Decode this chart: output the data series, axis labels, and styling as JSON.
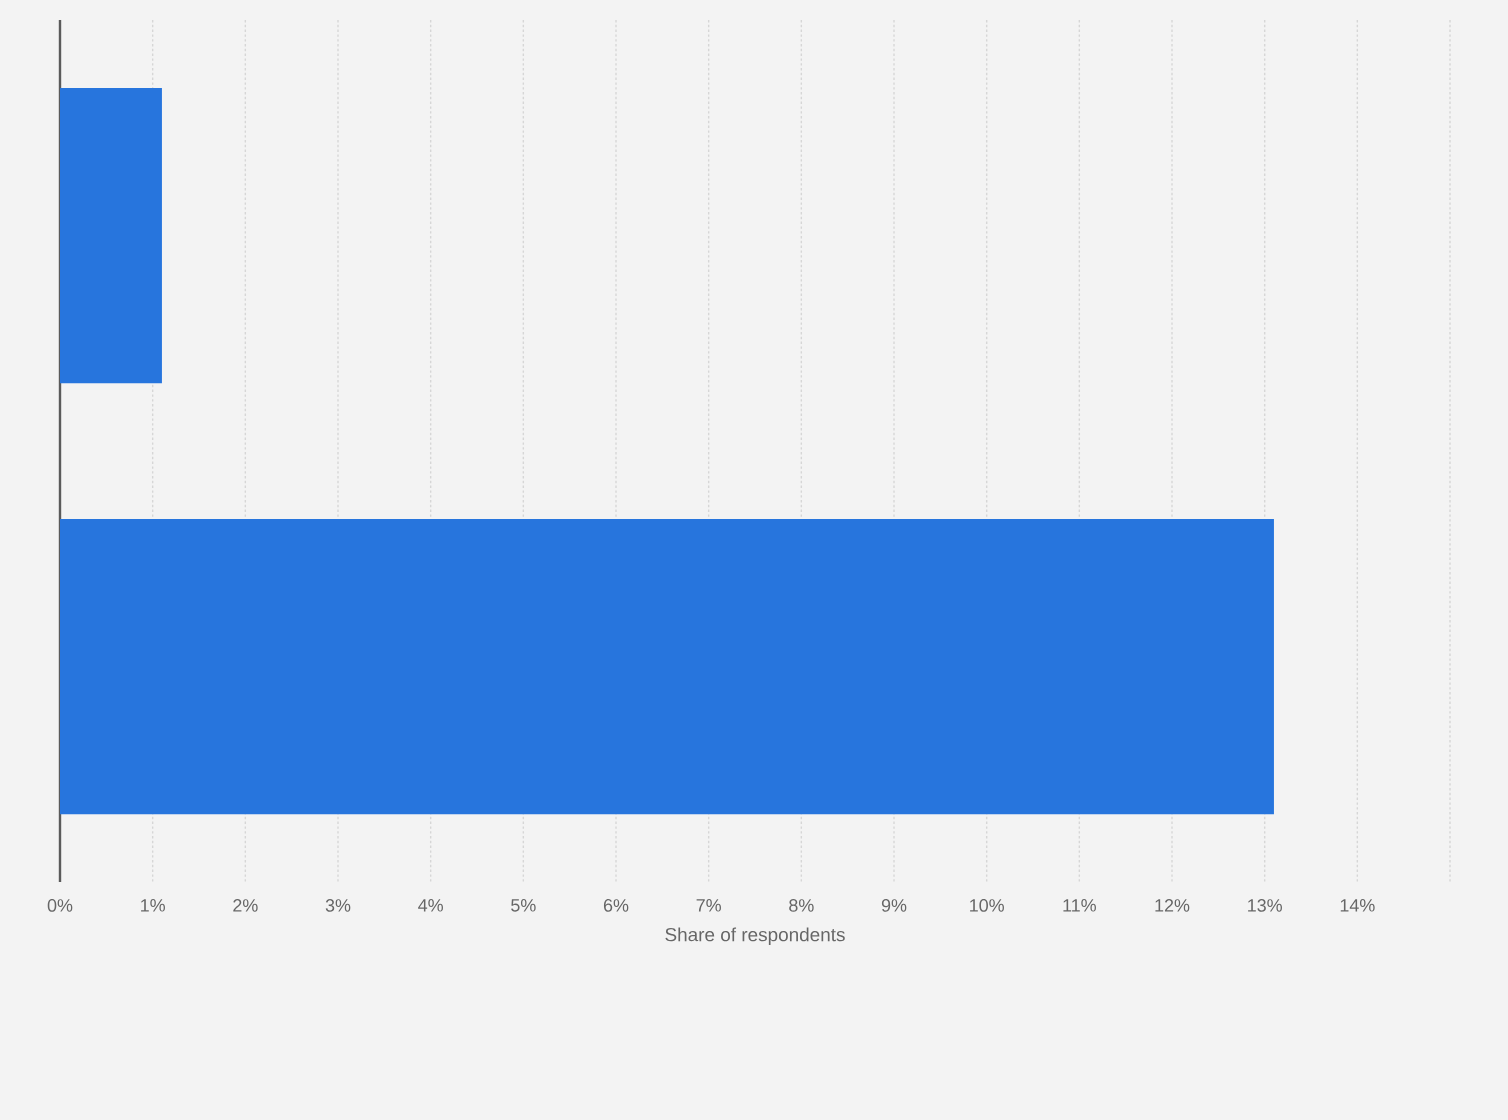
{
  "chart_data": {
    "type": "bar",
    "orientation": "horizontal",
    "categories": [
      null,
      null
    ],
    "values": [
      1.1,
      13.1
    ],
    "color": "#2775dd",
    "xlabel": "Share of respondents",
    "xlim": [
      0,
      15
    ],
    "xticks": [
      {
        "value": 0,
        "label": "0%"
      },
      {
        "value": 1,
        "label": "1%"
      },
      {
        "value": 2,
        "label": "2%"
      },
      {
        "value": 3,
        "label": "3%"
      },
      {
        "value": 4,
        "label": "4%"
      },
      {
        "value": 5,
        "label": "5%"
      },
      {
        "value": 6,
        "label": "6%"
      },
      {
        "value": 7,
        "label": "7%"
      },
      {
        "value": 8,
        "label": "8%"
      },
      {
        "value": 9,
        "label": "9%"
      },
      {
        "value": 10,
        "label": "10%"
      },
      {
        "value": 11,
        "label": "11%"
      },
      {
        "value": 12,
        "label": "12%"
      },
      {
        "value": 13,
        "label": "13%"
      },
      {
        "value": 14,
        "label": "14%"
      },
      {
        "value": 15,
        "label": null
      }
    ],
    "grid": "x",
    "tick_labels": "x"
  }
}
